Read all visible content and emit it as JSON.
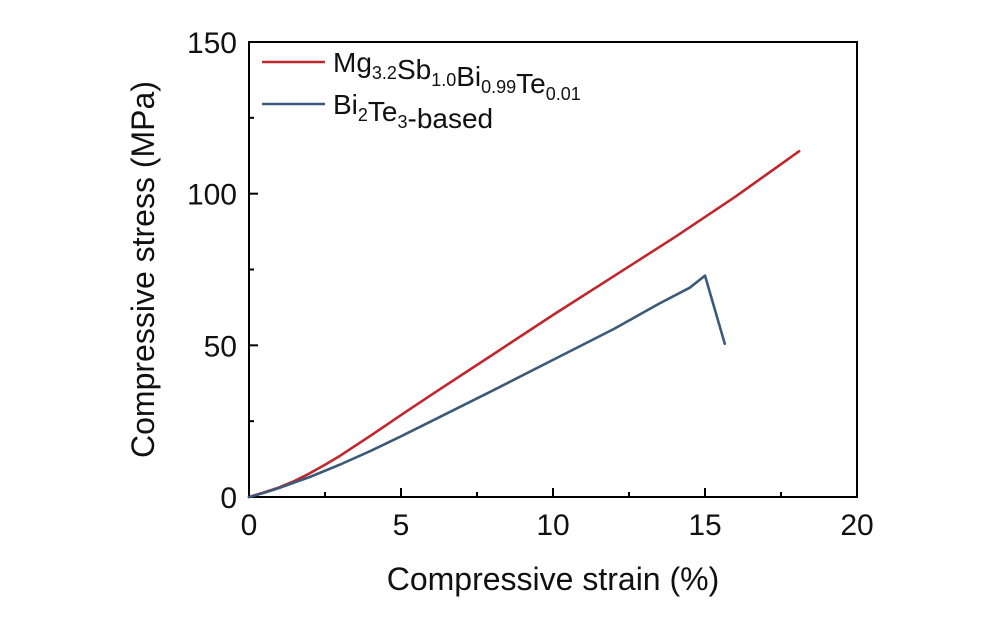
{
  "chart_data": {
    "type": "line",
    "xlabel": "Compressive strain (%)",
    "ylabel": "Compressive stress (MPa)",
    "xlim": [
      0,
      20
    ],
    "ylim": [
      0,
      150
    ],
    "xticks": [
      "0",
      "5",
      "10",
      "15",
      "20"
    ],
    "yticks": [
      "0",
      "50",
      "100",
      "150"
    ],
    "legend": "top-left",
    "grid": false,
    "series": [
      {
        "name": "Mg3.2Sb1.0Bi0.99Te0.01",
        "legend_parts": [
          {
            "text": "Mg",
            "sub": false
          },
          {
            "text": "3.2",
            "sub": true
          },
          {
            "text": "Sb",
            "sub": false
          },
          {
            "text": "1.0",
            "sub": true
          },
          {
            "text": "Bi",
            "sub": false
          },
          {
            "text": "0.99",
            "sub": true
          },
          {
            "text": "Te",
            "sub": false
          },
          {
            "text": "0.01",
            "sub": true
          }
        ],
        "color": "#c0272d",
        "points": [
          [
            0,
            0
          ],
          [
            0.5,
            1.5
          ],
          [
            1,
            3.2
          ],
          [
            1.5,
            5.3
          ],
          [
            2,
            7.8
          ],
          [
            2.5,
            10.6
          ],
          [
            3,
            13.6
          ],
          [
            4,
            20.2
          ],
          [
            5,
            27
          ],
          [
            6,
            33.7
          ],
          [
            8,
            46.8
          ],
          [
            10,
            60
          ],
          [
            12,
            72.8
          ],
          [
            14,
            85.6
          ],
          [
            16,
            99
          ],
          [
            18.1,
            114
          ]
        ]
      },
      {
        "name": "Bi2Te3-based",
        "legend_parts": [
          {
            "text": "Bi",
            "sub": false
          },
          {
            "text": "2",
            "sub": true
          },
          {
            "text": "Te",
            "sub": false
          },
          {
            "text": "3",
            "sub": true
          },
          {
            "text": "-based",
            "sub": false
          }
        ],
        "color": "#3b5a7a",
        "points": [
          [
            0,
            0
          ],
          [
            0.5,
            1.4
          ],
          [
            1,
            3
          ],
          [
            1.5,
            4.8
          ],
          [
            2,
            6.6
          ],
          [
            3,
            10.7
          ],
          [
            4,
            15.2
          ],
          [
            5,
            20
          ],
          [
            6,
            25
          ],
          [
            8,
            35
          ],
          [
            10,
            45.2
          ],
          [
            12,
            55.4
          ],
          [
            13.5,
            63.8
          ],
          [
            14.5,
            69
          ],
          [
            15,
            73
          ],
          [
            15.65,
            50.5
          ]
        ]
      }
    ]
  }
}
